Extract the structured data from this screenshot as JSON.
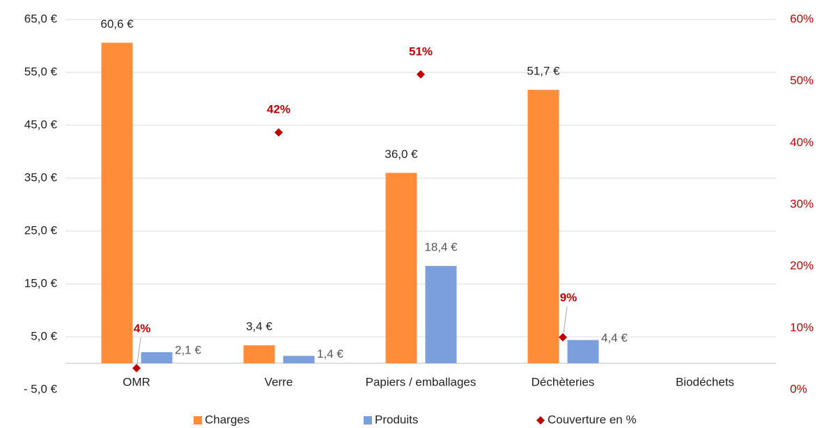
{
  "chart_data": {
    "type": "bar",
    "categories": [
      "OMR",
      "Verre",
      "Papiers / emballages",
      "Déchèteries",
      "Biodéchets"
    ],
    "series": [
      {
        "name": "Charges",
        "color": "#ff8c38",
        "values": [
          60.6,
          3.4,
          36.0,
          51.7,
          null
        ],
        "value_labels": [
          "60,6 €",
          "3,4 €",
          "36,0 €",
          "51,7 €",
          null
        ]
      },
      {
        "name": "Produits",
        "color": "#7b9fdc",
        "values": [
          2.1,
          1.4,
          18.4,
          4.4,
          null
        ],
        "value_labels": [
          "2,1 €",
          "1,4 €",
          "18,4 €",
          "4,4 €",
          null
        ]
      },
      {
        "name": "Couverture en %",
        "type": "scatter",
        "axis": "y2",
        "color": "#c00000",
        "values": [
          3.5,
          41.7,
          51.1,
          8.5,
          null
        ],
        "value_labels": [
          "4%",
          "42%",
          "51%",
          "9%",
          null
        ]
      }
    ],
    "ylim": [
      -5,
      65
    ],
    "yticks": [
      {
        "value": -5,
        "label": "- 5,0 €"
      },
      {
        "value": 5,
        "label": "5,0 €"
      },
      {
        "value": 15,
        "label": "15,0 €"
      },
      {
        "value": 25,
        "label": "25,0 €"
      },
      {
        "value": 35,
        "label": "35,0 €"
      },
      {
        "value": 45,
        "label": "45,0 €"
      },
      {
        "value": 55,
        "label": "55,0 €"
      },
      {
        "value": 65,
        "label": "65,0 €"
      }
    ],
    "y2lim": [
      0,
      60
    ],
    "y2ticks": [
      {
        "value": 0,
        "label": "0%"
      },
      {
        "value": 10,
        "label": "10%"
      },
      {
        "value": 20,
        "label": "20%"
      },
      {
        "value": 30,
        "label": "30%"
      },
      {
        "value": 40,
        "label": "40%"
      },
      {
        "value": 50,
        "label": "50%"
      },
      {
        "value": 60,
        "label": "60%"
      }
    ],
    "grid": true,
    "legend": "bottom"
  }
}
